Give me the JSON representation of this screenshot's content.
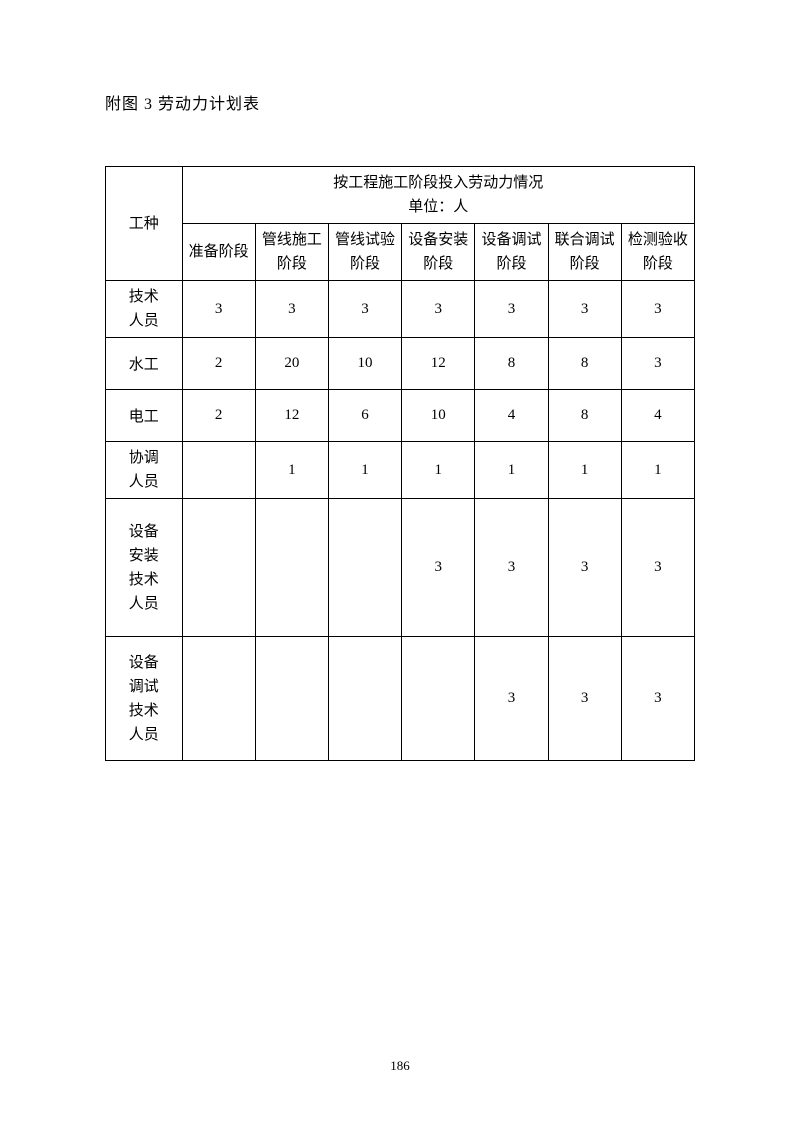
{
  "title": "附图 3 劳动力计划表",
  "header": {
    "rowLabel": "工种",
    "topLine1": "按工程施工阶段投入劳动力情况",
    "topLine2": "单位：人",
    "columns": [
      "准备阶段",
      "管线施工阶段",
      "管线试验阶段",
      "设备安装阶段",
      "设备调试阶段",
      "联合调试阶段",
      "检测验收阶段"
    ]
  },
  "rows": [
    {
      "label": "技术人员",
      "cells": [
        "3",
        "3",
        "3",
        "3",
        "3",
        "3",
        "3"
      ]
    },
    {
      "label": "水工",
      "cells": [
        "2",
        "20",
        "10",
        "12",
        "8",
        "8",
        "3"
      ]
    },
    {
      "label": "电工",
      "cells": [
        "2",
        "12",
        "6",
        "10",
        "4",
        "8",
        "4"
      ]
    },
    {
      "label": "协调人员",
      "cells": [
        "",
        "1",
        "1",
        "1",
        "1",
        "1",
        "1"
      ]
    },
    {
      "label": "设备安装技术人员",
      "cells": [
        "",
        "",
        "",
        "3",
        "3",
        "3",
        "3"
      ]
    },
    {
      "label": "设备调试技术人员",
      "cells": [
        "",
        "",
        "",
        "",
        "3",
        "3",
        "3"
      ]
    }
  ],
  "pageNumber": "186",
  "style": {
    "background_color": "#ffffff",
    "border_color": "#000000",
    "text_color": "#000000",
    "font_family": "SimSun",
    "title_fontsize": 16,
    "cell_fontsize": 15,
    "page_fontsize": 13
  }
}
